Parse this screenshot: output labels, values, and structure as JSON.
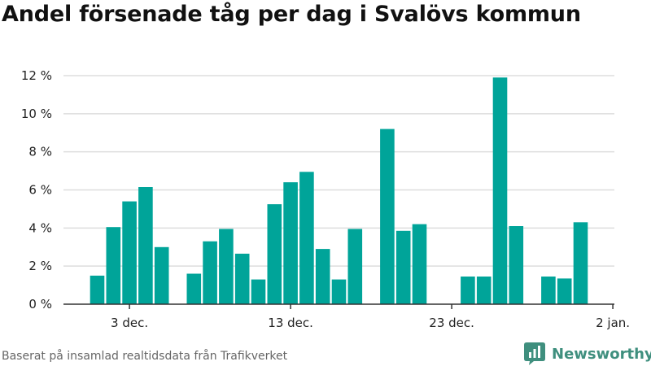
{
  "title": "Andel försenade tåg per dag i Svalövs kommun",
  "footer": "Baserat på insamlad realtidsdata från Trafikverket",
  "brand": {
    "name": "Newsworthy",
    "icon": "newsworthy-logo-icon"
  },
  "colors": {
    "bar": "#00a499",
    "grid": "#dddddd",
    "axis": "#333333",
    "brand": "#3f8f7e"
  },
  "chart_data": {
    "type": "bar",
    "title": "Andel försenade tåg per dag i Svalövs kommun",
    "xlabel": "",
    "ylabel": "",
    "x_tick_labels": [
      {
        "label": "3 dec.",
        "index": 2
      },
      {
        "label": "13 dec.",
        "index": 12
      },
      {
        "label": "23 dec.",
        "index": 22
      },
      {
        "label": "2 jan.",
        "index": 32
      }
    ],
    "y_ticks": [
      0,
      2,
      4,
      6,
      8,
      10,
      12
    ],
    "y_tick_suffix": " %",
    "ylim": [
      0,
      12
    ],
    "grid": true,
    "categories": [
      "1 dec.",
      "2 dec.",
      "3 dec.",
      "4 dec.",
      "5 dec.",
      "6 dec.",
      "7 dec.",
      "8 dec.",
      "9 dec.",
      "10 dec.",
      "11 dec.",
      "12 dec.",
      "13 dec.",
      "14 dec.",
      "15 dec.",
      "16 dec.",
      "17 dec.",
      "18 dec.",
      "19 dec.",
      "20 dec.",
      "21 dec.",
      "22 dec.",
      "23 dec.",
      "24 dec.",
      "25 dec.",
      "26 dec.",
      "27 dec.",
      "28 dec.",
      "29 dec.",
      "30 dec.",
      "31 dec.",
      "1 jan."
    ],
    "values": [
      1.5,
      4.05,
      5.4,
      6.15,
      3.0,
      null,
      1.6,
      3.3,
      3.95,
      2.65,
      1.3,
      5.25,
      6.4,
      6.95,
      2.9,
      1.3,
      3.95,
      null,
      9.2,
      3.85,
      4.2,
      null,
      null,
      1.45,
      1.45,
      11.9,
      4.1,
      null,
      1.45,
      1.35,
      4.3,
      null
    ]
  }
}
